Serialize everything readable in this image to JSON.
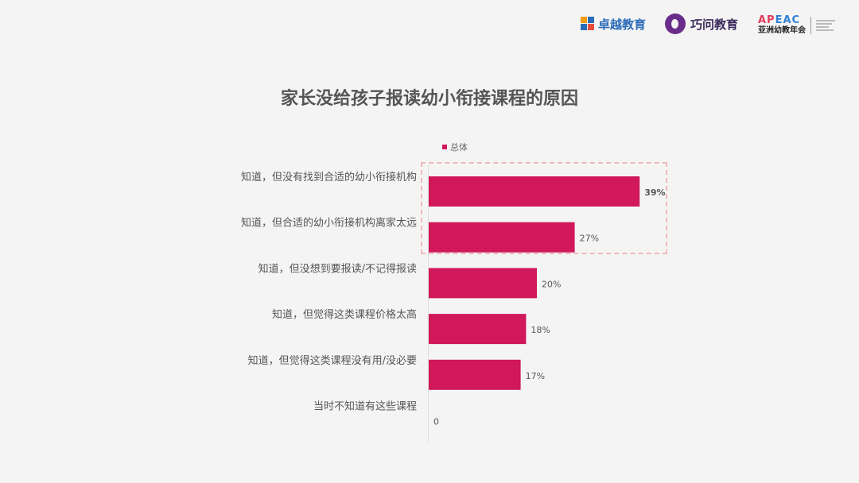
{
  "header": {
    "logo_zhuoyue": "卓越教育",
    "logo_qiaowen": "巧问教育",
    "logo_apeac_top": "APEAC",
    "logo_apeac_bottom": "亚洲幼教年会"
  },
  "colors": {
    "bar": "#d0185a",
    "highlight": "#f0b9bb",
    "title": "#555555"
  },
  "chart_data": {
    "type": "bar",
    "orientation": "horizontal",
    "title": "家长没给孩子报读幼小衔接课程的原因",
    "legend_position": "top",
    "categories": [
      "知道，但没有找到合适的幼小衔接机构",
      "知道，但合适的幼小衔接机构离家太远",
      "知道，但没想到要报读/不记得报读",
      "知道，但觉得这类课程价格太高",
      "知道，但觉得这类课程没有用/没必要",
      "当时不知道有这些课程"
    ],
    "series": [
      {
        "name": "总体",
        "values": [
          39,
          27,
          20,
          18,
          17,
          0
        ]
      }
    ],
    "value_labels": [
      "39%",
      "27%",
      "20%",
      "18%",
      "17%",
      "0"
    ],
    "xlim": [
      0,
      100
    ],
    "highlighted_categories": [
      0,
      1
    ]
  }
}
